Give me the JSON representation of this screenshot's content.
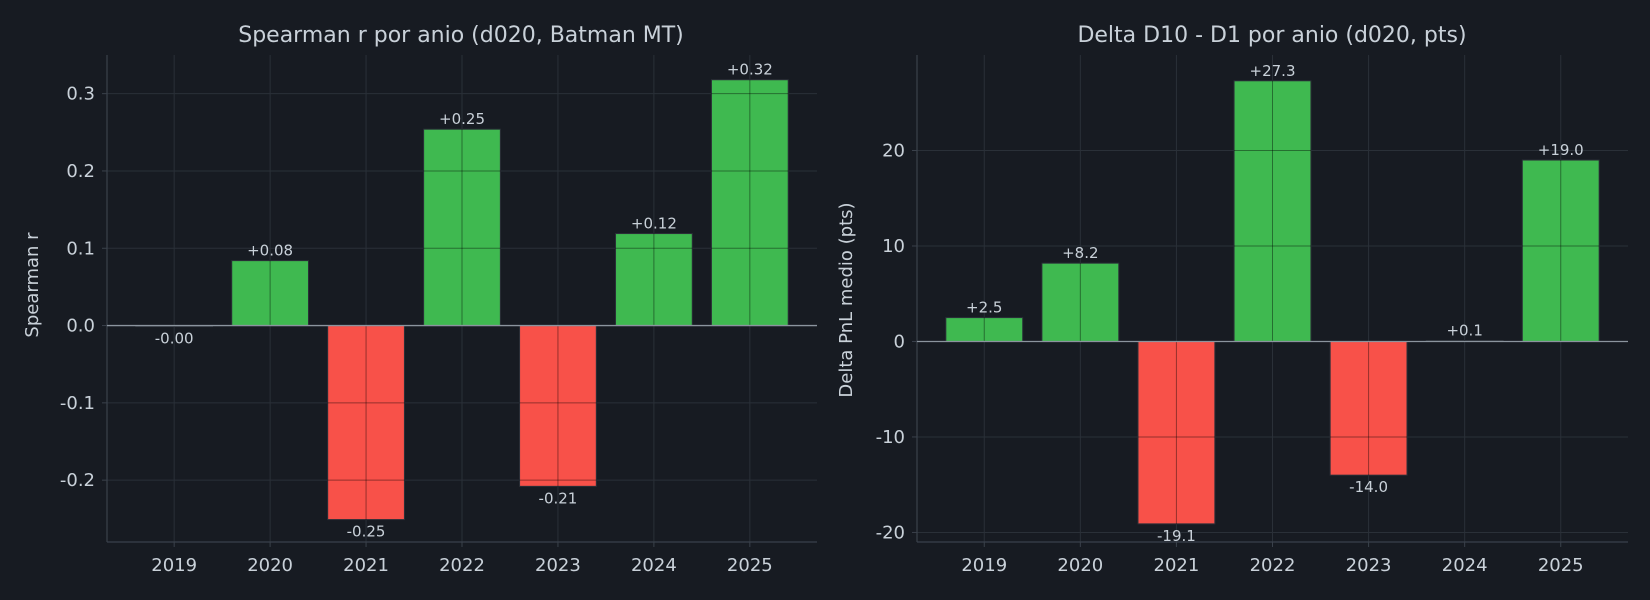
{
  "theme": {
    "background": "#171b22",
    "text": "#c9d1d9",
    "positive": "#3fb950",
    "negative": "#f85149",
    "grid": "#2a3038",
    "axis": "#3a414b",
    "zeroline": "#8b949e"
  },
  "chart_data": [
    {
      "type": "bar",
      "title": "Spearman r por anio (d020, Batman MT)",
      "xlabel": "",
      "ylabel": "Spearman r",
      "categories": [
        "2019",
        "2020",
        "2021",
        "2022",
        "2023",
        "2024",
        "2025"
      ],
      "values": [
        -0.001,
        0.084,
        -0.251,
        0.254,
        -0.208,
        0.119,
        0.318
      ],
      "value_labels": [
        "-0.00",
        "+0.08",
        "-0.25",
        "+0.25",
        "-0.21",
        "+0.12",
        "+0.32"
      ],
      "ylim": [
        -0.28,
        0.35
      ],
      "yticks": [
        -0.2,
        -0.1,
        0.0,
        0.1,
        0.2,
        0.3
      ],
      "ytick_labels": [
        "-0.2",
        "-0.1",
        "0.0",
        "0.1",
        "0.2",
        "0.3"
      ],
      "grid": true,
      "zero_line": true
    },
    {
      "type": "bar",
      "title": "Delta D10 - D1 por anio (d020, pts)",
      "xlabel": "",
      "ylabel": "Delta PnL medio (pts)",
      "categories": [
        "2019",
        "2020",
        "2021",
        "2022",
        "2023",
        "2024",
        "2025"
      ],
      "values": [
        2.5,
        8.2,
        -19.1,
        27.3,
        -14.0,
        0.1,
        19.0
      ],
      "value_labels": [
        "+2.5",
        "+8.2",
        "-19.1",
        "+27.3",
        "-14.0",
        "+0.1",
        "+19.0"
      ],
      "ylim": [
        -21,
        30
      ],
      "yticks": [
        -20,
        -10,
        0,
        10,
        20
      ],
      "ytick_labels": [
        "-20",
        "-10",
        "0",
        "10",
        "20"
      ],
      "grid": true,
      "zero_line": true
    }
  ]
}
